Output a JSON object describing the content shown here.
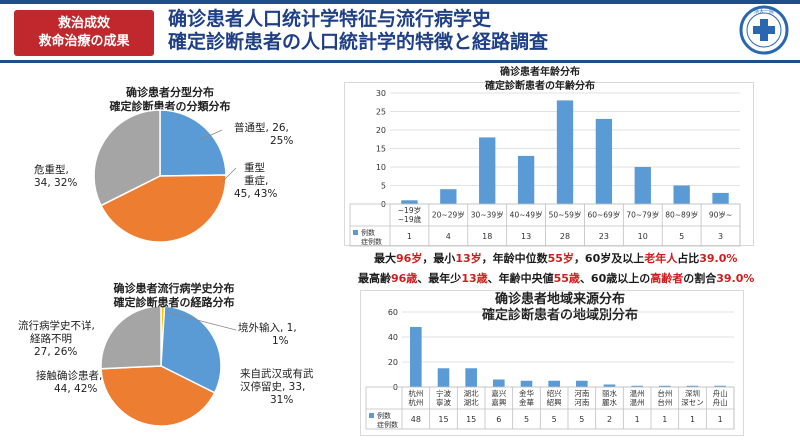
{
  "header": {
    "badge_line1": "救治成效",
    "badge_line2": "救命治療の成果",
    "title_line1": "确诊患者人口统计学特征与流行病学史",
    "title_line2": "確定診断患者の人口統計学的特徴と経路調査"
  },
  "logo": {
    "text": "浙大一院"
  },
  "colors": {
    "blue": "#5b9bd5",
    "orange": "#ed7d31",
    "gray": "#a5a5a5",
    "yellow": "#ffc000",
    "badge": "#c0282d",
    "title": "#1f3f86",
    "highlight": "#d01c1c"
  },
  "chart_data": [
    {
      "type": "pie",
      "title": "确诊患者分型分布",
      "subtitle": "確定診断患者の分類分布",
      "slices": [
        {
          "name": "普通型",
          "value": 26,
          "percent": "25%",
          "color": "#5b9bd5"
        },
        {
          "name": "重型 重症",
          "value": 45,
          "percent": "43%",
          "color": "#ed7d31"
        },
        {
          "name": "危重型",
          "value": 34,
          "percent": "32%",
          "color": "#a5a5a5"
        }
      ],
      "labels": {
        "normal_name": "普通型,",
        "normal_value": "26,",
        "normal_pct": "25%",
        "severe_name_cn": "重型",
        "severe_name_jp": "重症,",
        "severe_value": "45, 43%",
        "critical_name": "危重型,",
        "critical_value": "34, 32%"
      }
    },
    {
      "type": "pie",
      "title": "确诊患者流行病学史分布",
      "subtitle": "確定診断患者の経路分布",
      "slices": [
        {
          "name": "境外输入",
          "value": 1,
          "percent": "1%",
          "color": "#ffc000"
        },
        {
          "name": "来自武汉或有武汉停留史",
          "value": 33,
          "percent": "31%",
          "color": "#5b9bd5"
        },
        {
          "name": "接触确诊患者",
          "value": 44,
          "percent": "42%",
          "color": "#ed7d31"
        },
        {
          "name": "流行病学史不详,经路不明",
          "value": 27,
          "percent": "26%",
          "color": "#a5a5a5"
        }
      ],
      "labels": {
        "abroad_line1": "境外输入, 1,",
        "abroad_line2": "1%",
        "wuhan_line1": "来自武汉或有武",
        "wuhan_line2": "汉停留史, 33,",
        "wuhan_line3": "31%",
        "contact_line1": "接触确诊患者,",
        "contact_line2": "44, 42%",
        "unknown_line1": "流行病学史不详,",
        "unknown_line2": "経路不明",
        "unknown_line3": "27, 26%"
      }
    },
    {
      "type": "bar",
      "title": "确诊患者年龄分布",
      "subtitle": "確定診断患者の年齢分布",
      "categories": [
        "~19岁~19歳",
        "20~29岁",
        "30~39岁",
        "40~49岁",
        "50~59岁",
        "60~69岁",
        "70~79岁",
        "80~89岁",
        "90岁~"
      ],
      "category_lines": [
        [
          "~19岁",
          "~19歳"
        ],
        [
          "20~29岁"
        ],
        [
          "30~39岁"
        ],
        [
          "40~49岁"
        ],
        [
          "50~59岁"
        ],
        [
          "60~69岁"
        ],
        [
          "70~79岁"
        ],
        [
          "80~89岁"
        ],
        [
          "90岁~"
        ]
      ],
      "values": [
        1,
        4,
        18,
        13,
        28,
        23,
        10,
        5,
        3
      ],
      "ylim": [
        0,
        30
      ],
      "yticks": [
        "0",
        "5",
        "10",
        "15",
        "20",
        "25",
        "30"
      ],
      "series_name_line1": "例数",
      "series_name_line2": "症例数"
    },
    {
      "type": "bar",
      "title": "确诊患者地域来源分布",
      "subtitle": "確定診断患者の地域別分布",
      "categories": [
        "杭州 杭州",
        "宁波 寧波",
        "湖北 湖北",
        "嘉兴 嘉興",
        "金华 金華",
        "绍兴 紹興",
        "河南 河南",
        "丽水 麗水",
        "温州 温州",
        "台州 台州",
        "深圳 深セン",
        "舟山 舟山"
      ],
      "category_lines": [
        [
          "杭州",
          "杭州"
        ],
        [
          "宁波",
          "寧波"
        ],
        [
          "湖北",
          "湖北"
        ],
        [
          "嘉兴",
          "嘉興"
        ],
        [
          "金华",
          "金華"
        ],
        [
          "绍兴",
          "紹興"
        ],
        [
          "河南",
          "河南"
        ],
        [
          "丽水",
          "麗水"
        ],
        [
          "温州",
          "温州"
        ],
        [
          "台州",
          "台州"
        ],
        [
          "深圳",
          "深セン"
        ],
        [
          "舟山",
          "舟山"
        ]
      ],
      "values": [
        48,
        15,
        15,
        6,
        5,
        5,
        5,
        2,
        1,
        1,
        1,
        1
      ],
      "ylim": [
        0,
        60
      ],
      "yticks": [
        "0",
        "20",
        "40",
        "60"
      ],
      "series_name_line1": "例数",
      "series_name_line2": "症例数"
    }
  ],
  "stats": {
    "cn": [
      {
        "t": "最大",
        "r": false
      },
      {
        "t": "96岁",
        "r": true
      },
      {
        "t": "，最小",
        "r": false
      },
      {
        "t": "13岁",
        "r": true
      },
      {
        "t": "，年龄中位数",
        "r": false
      },
      {
        "t": "55岁",
        "r": true
      },
      {
        "t": "，60岁及以上",
        "r": false
      },
      {
        "t": "老年人",
        "r": true
      },
      {
        "t": "占比",
        "r": false
      },
      {
        "t": "39.0%",
        "r": true
      }
    ],
    "jp": [
      {
        "t": "最高齢",
        "r": false
      },
      {
        "t": "96歳",
        "r": true
      },
      {
        "t": "、最年少",
        "r": false
      },
      {
        "t": "13歳",
        "r": true
      },
      {
        "t": "、年齢中央値",
        "r": false
      },
      {
        "t": "55歳",
        "r": true
      },
      {
        "t": "、60歳以上の",
        "r": false
      },
      {
        "t": "高齢者",
        "r": true
      },
      {
        "t": "の割合",
        "r": false
      },
      {
        "t": "39.0%",
        "r": true
      }
    ]
  }
}
